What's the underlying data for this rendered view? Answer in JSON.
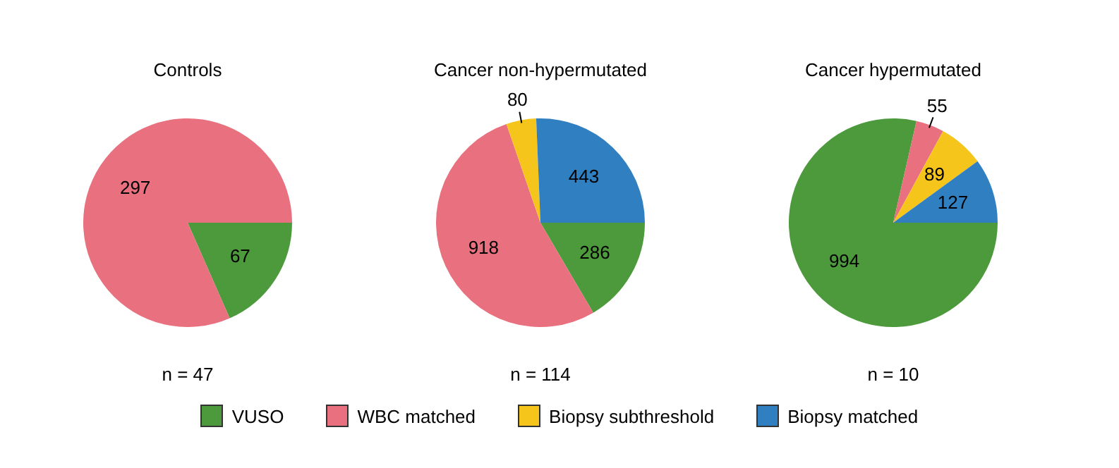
{
  "chart_data": [
    {
      "type": "pie",
      "title": "Controls",
      "categories": [
        null,
        null
      ],
      "values": [
        67,
        297
      ],
      "colors": [
        "#4d9a3c",
        "#e8707f"
      ],
      "data_labels": true,
      "annotations": [
        "n = 47"
      ]
    },
    {
      "type": "pie",
      "title": "Cancer non-hypermutated",
      "categories": [
        "VUSO",
        "WBC matched",
        "Biopsy subthreshold",
        "Biopsy matched"
      ],
      "values": [
        286,
        918,
        80,
        443
      ],
      "colors": [
        "#4d9a3c",
        "#e8707f",
        "#f6c51b",
        "#2f7fc1"
      ],
      "data_labels": true,
      "legend": "bottom",
      "annotations": [
        "n = 114"
      ]
    },
    {
      "type": "pie",
      "title": "Cancer hypermutated",
      "categories": [
        null,
        null,
        null,
        null
      ],
      "values": [
        994,
        55,
        89,
        127
      ],
      "colors": [
        "#4d9a3c",
        "#e8707f",
        "#f6c51b",
        "#2f7fc1"
      ],
      "data_labels": true,
      "annotations": [
        "n = 10"
      ]
    }
  ]
}
